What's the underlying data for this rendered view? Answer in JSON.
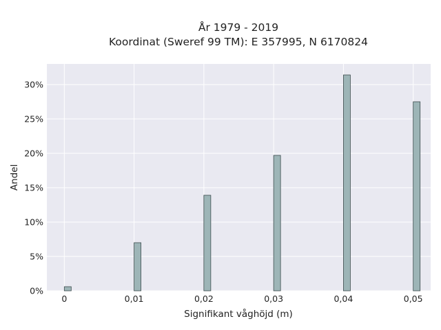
{
  "chart_data": {
    "type": "bar",
    "title_lines": [
      "År 1979 - 2019",
      "Koordinat (Sweref 99 TM): E 357995, N 6170824"
    ],
    "xlabel": "Signifikant våghöjd (m)",
    "ylabel": "Andel",
    "x": [
      0,
      0.01,
      0.02,
      0.03,
      0.04,
      0.05
    ],
    "x_tick_labels": [
      "0",
      "0,01",
      "0,02",
      "0,03",
      "0,04",
      "0,05"
    ],
    "values": [
      0.6,
      7.0,
      13.9,
      19.7,
      31.4,
      27.5
    ],
    "y_unit": "%",
    "y_ticks": [
      0,
      5,
      10,
      15,
      20,
      25,
      30
    ],
    "y_tick_labels": [
      "0%",
      "5%",
      "10%",
      "15%",
      "20%",
      "25%",
      "30%"
    ],
    "xlim": [
      -0.0025,
      0.0525
    ],
    "ylim": [
      0,
      33
    ],
    "grid": true,
    "colors": {
      "plot_background": "#e9e9f1",
      "grid": "#ffffff",
      "bar_fill": "#9db5b7",
      "bar_edge": "#3c4b4d"
    }
  }
}
